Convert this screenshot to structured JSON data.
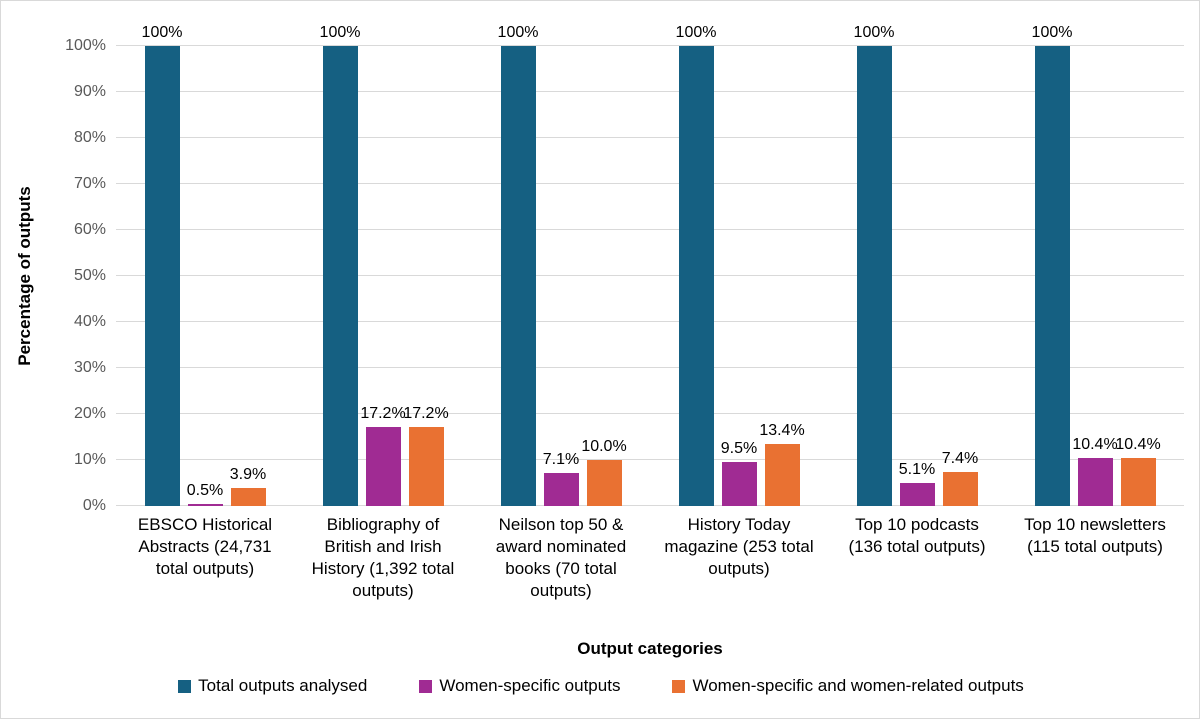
{
  "chart_data": {
    "type": "bar",
    "title": "",
    "xlabel": "Output categories",
    "ylabel": "Percentage of outputs",
    "ylim": [
      0,
      100
    ],
    "ytick_step": 10,
    "ytick_suffix": "%",
    "grid": true,
    "legend_position": "bottom",
    "categories": [
      "EBSCO Historical Abstracts (24,731 total outputs)",
      "Bibliography of British and Irish History (1,392 total outputs)",
      "Neilson top 50 & award nominated books (70 total outputs)",
      "History Today magazine (253 total outputs)",
      "Top 10 podcasts (136 total outputs)",
      "Top 10 newsletters (115 total outputs)"
    ],
    "series": [
      {
        "key": "total-outputs-analysed",
        "name": "Total outputs analysed",
        "color": "#156082",
        "values": [
          100,
          100,
          100,
          100,
          100,
          100
        ],
        "labels": [
          "100%",
          "100%",
          "100%",
          "100%",
          "100%",
          "100%"
        ]
      },
      {
        "key": "women-specific-outputs",
        "name": "Women-specific outputs",
        "color": "#A02B93",
        "values": [
          0.5,
          17.2,
          7.1,
          9.5,
          5.1,
          10.4
        ],
        "labels": [
          "0.5%",
          "17.2%",
          "7.1%",
          "9.5%",
          "5.1%",
          "10.4%"
        ]
      },
      {
        "key": "women-specific-and-women-related-outputs",
        "name": "Women-specific and women-related outputs",
        "color": "#E97132",
        "values": [
          3.9,
          17.2,
          10.0,
          13.4,
          7.4,
          10.4
        ],
        "labels": [
          "3.9%",
          "17.2%",
          "10.0%",
          "13.4%",
          "7.4%",
          "10.4%"
        ]
      }
    ],
    "colors": {
      "gridline": "#d9d9d9",
      "tick_label": "#595959",
      "text": "#000000",
      "background": "#ffffff",
      "border": "#d9d9d9"
    }
  }
}
